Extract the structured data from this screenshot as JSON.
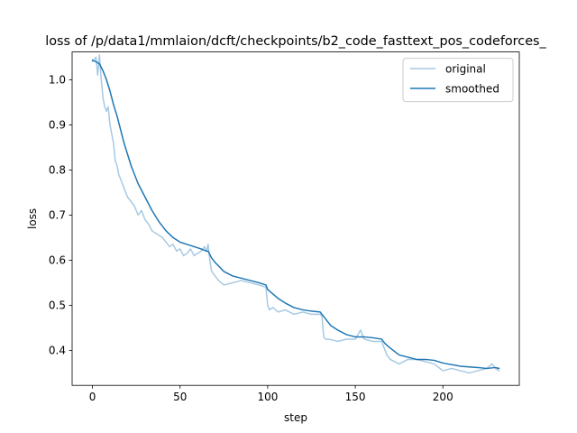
{
  "chart_data": {
    "type": "line",
    "title": "loss of /p/data1/mmlaion/dcft/checkpoints/b2_code_fasttext_pos_codeforces_",
    "xlabel": "step",
    "ylabel": "loss",
    "xlim": [
      -11.6,
      243.6
    ],
    "ylim": [
      0.3225,
      1.0615
    ],
    "xticks": [
      0,
      50,
      100,
      150,
      200
    ],
    "yticks": [
      0.4,
      0.5,
      0.6,
      0.7,
      0.8,
      0.9,
      1.0
    ],
    "xtick_labels": [
      "0",
      "50",
      "100",
      "150",
      "200"
    ],
    "ytick_labels": [
      "0.4",
      "0.5",
      "0.6",
      "0.7",
      "0.8",
      "0.9",
      "1.0"
    ],
    "legend_position": "upper right",
    "grid": false,
    "series": [
      {
        "name": "original",
        "color": "#a6c9e3",
        "x": [
          0,
          2,
          3,
          4,
          5,
          6,
          7,
          8,
          9,
          10,
          11,
          12,
          13,
          14,
          15,
          16,
          18,
          20,
          22,
          24,
          26,
          28,
          30,
          32,
          34,
          36,
          38,
          40,
          42,
          44,
          46,
          48,
          50,
          52,
          54,
          56,
          58,
          60,
          62,
          64,
          65,
          66,
          67,
          68,
          70,
          72,
          75,
          80,
          85,
          90,
          95,
          99,
          100,
          101,
          103,
          106,
          110,
          115,
          120,
          125,
          130,
          131,
          132,
          133,
          135,
          140,
          145,
          150,
          153,
          155,
          160,
          165,
          166,
          168,
          170,
          175,
          180,
          185,
          190,
          195,
          200,
          205,
          210,
          215,
          220,
          225,
          228,
          230,
          232
        ],
        "y": [
          1.04,
          1.05,
          1.01,
          1.055,
          1.0,
          0.96,
          0.94,
          0.93,
          0.94,
          0.9,
          0.88,
          0.86,
          0.82,
          0.81,
          0.79,
          0.78,
          0.76,
          0.74,
          0.73,
          0.72,
          0.7,
          0.71,
          0.69,
          0.68,
          0.665,
          0.66,
          0.655,
          0.65,
          0.64,
          0.63,
          0.635,
          0.62,
          0.625,
          0.61,
          0.615,
          0.625,
          0.61,
          0.615,
          0.62,
          0.63,
          0.62,
          0.635,
          0.6,
          0.575,
          0.565,
          0.555,
          0.545,
          0.55,
          0.555,
          0.55,
          0.545,
          0.54,
          0.5,
          0.49,
          0.495,
          0.485,
          0.49,
          0.48,
          0.485,
          0.48,
          0.48,
          0.475,
          0.43,
          0.425,
          0.425,
          0.42,
          0.425,
          0.425,
          0.445,
          0.425,
          0.42,
          0.42,
          0.41,
          0.39,
          0.38,
          0.37,
          0.38,
          0.38,
          0.375,
          0.37,
          0.355,
          0.36,
          0.355,
          0.35,
          0.355,
          0.36,
          0.37,
          0.36,
          0.355
        ]
      },
      {
        "name": "smoothed",
        "color": "#1f77b4",
        "x": [
          0,
          2,
          4,
          6,
          8,
          10,
          12,
          14,
          16,
          18,
          20,
          22,
          24,
          26,
          28,
          30,
          34,
          38,
          42,
          46,
          50,
          54,
          58,
          62,
          65,
          66,
          68,
          70,
          75,
          80,
          85,
          90,
          95,
          99,
          100,
          103,
          106,
          110,
          115,
          120,
          125,
          130,
          131,
          133,
          136,
          140,
          145,
          150,
          155,
          160,
          165,
          167,
          170,
          175,
          180,
          185,
          190,
          195,
          200,
          210,
          220,
          225,
          230,
          232
        ],
        "y": [
          1.043,
          1.04,
          1.035,
          1.02,
          1.0,
          0.975,
          0.945,
          0.92,
          0.89,
          0.86,
          0.835,
          0.81,
          0.79,
          0.77,
          0.755,
          0.74,
          0.71,
          0.685,
          0.665,
          0.65,
          0.64,
          0.635,
          0.63,
          0.625,
          0.62,
          0.62,
          0.605,
          0.595,
          0.575,
          0.565,
          0.56,
          0.555,
          0.55,
          0.545,
          0.535,
          0.525,
          0.515,
          0.505,
          0.495,
          0.49,
          0.487,
          0.485,
          0.48,
          0.47,
          0.455,
          0.445,
          0.435,
          0.43,
          0.43,
          0.428,
          0.425,
          0.415,
          0.405,
          0.39,
          0.385,
          0.38,
          0.38,
          0.378,
          0.372,
          0.365,
          0.362,
          0.36,
          0.362,
          0.36
        ]
      }
    ]
  }
}
